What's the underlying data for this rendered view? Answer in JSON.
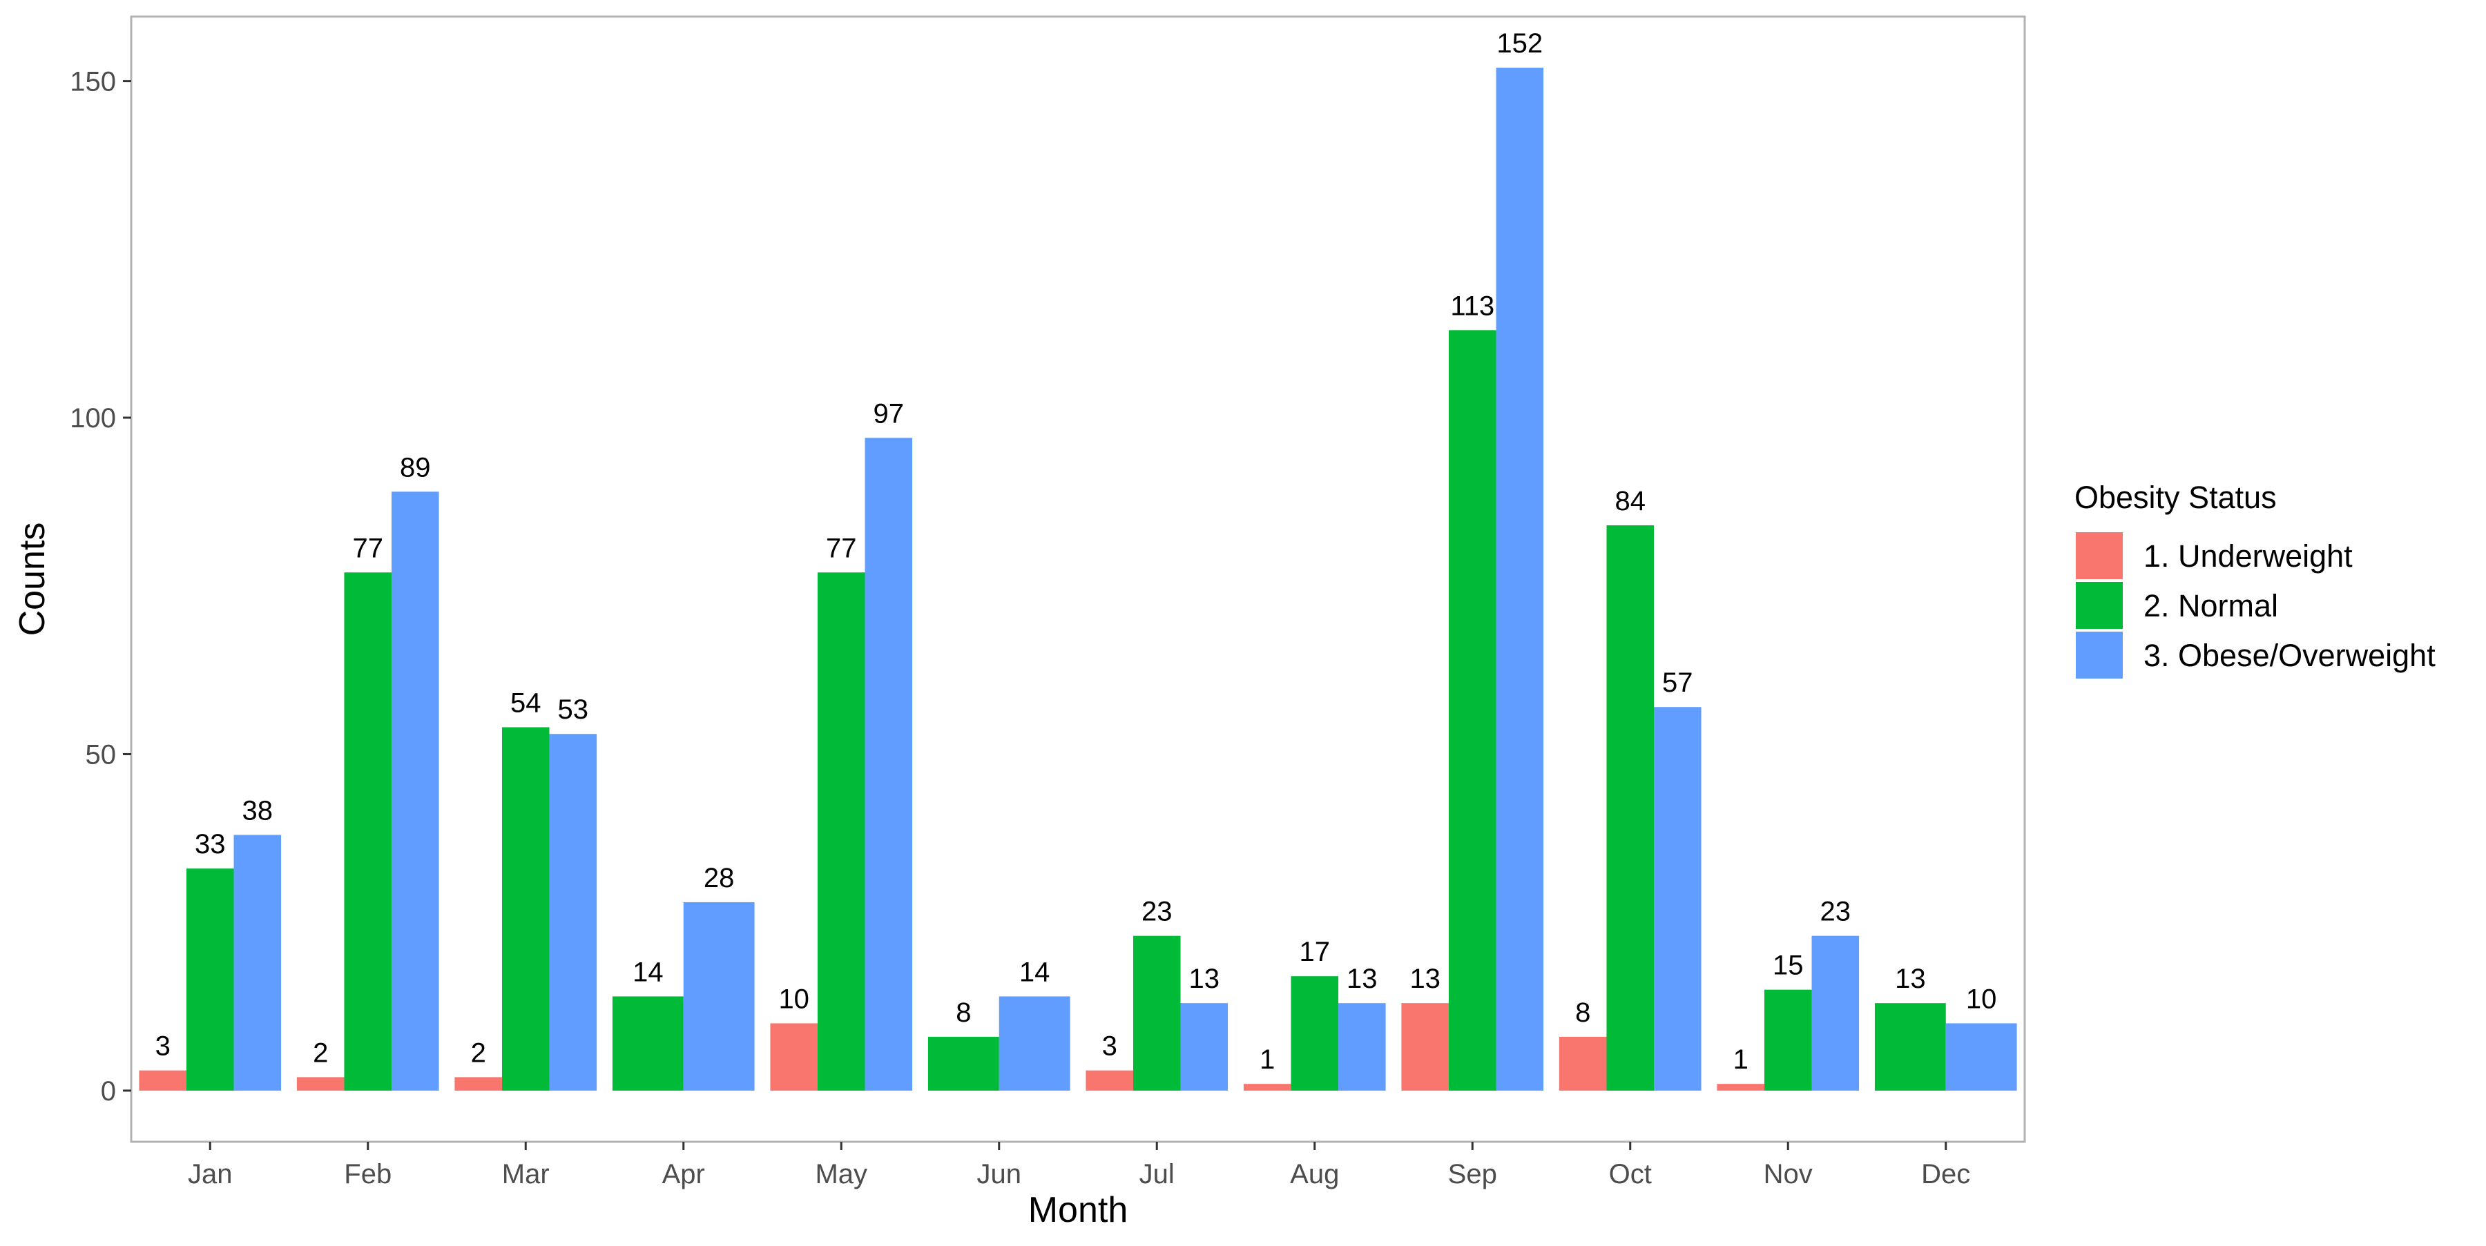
{
  "chart_data": {
    "type": "bar",
    "categories": [
      "Jan",
      "Feb",
      "Mar",
      "Apr",
      "May",
      "Jun",
      "Jul",
      "Aug",
      "Sep",
      "Oct",
      "Nov",
      "Dec"
    ],
    "series": [
      {
        "name": "1. Underweight",
        "color": "#F8766D",
        "values": [
          3,
          2,
          2,
          null,
          10,
          null,
          3,
          1,
          13,
          8,
          1,
          null
        ]
      },
      {
        "name": "2. Normal",
        "color": "#00BA38",
        "values": [
          33,
          77,
          54,
          14,
          77,
          8,
          23,
          17,
          113,
          84,
          15,
          13
        ]
      },
      {
        "name": "3. Obese/Overweight",
        "color": "#619CFF",
        "values": [
          38,
          89,
          53,
          28,
          97,
          14,
          13,
          13,
          152,
          57,
          23,
          10
        ]
      }
    ],
    "title": "",
    "xlabel": "Month",
    "ylabel": "Counts",
    "ylim": [
      -7.6,
      159.6
    ],
    "yticks": [
      0,
      50,
      100,
      150
    ],
    "legend": {
      "title": "Obesity Status",
      "position": "right"
    },
    "grid": false
  }
}
